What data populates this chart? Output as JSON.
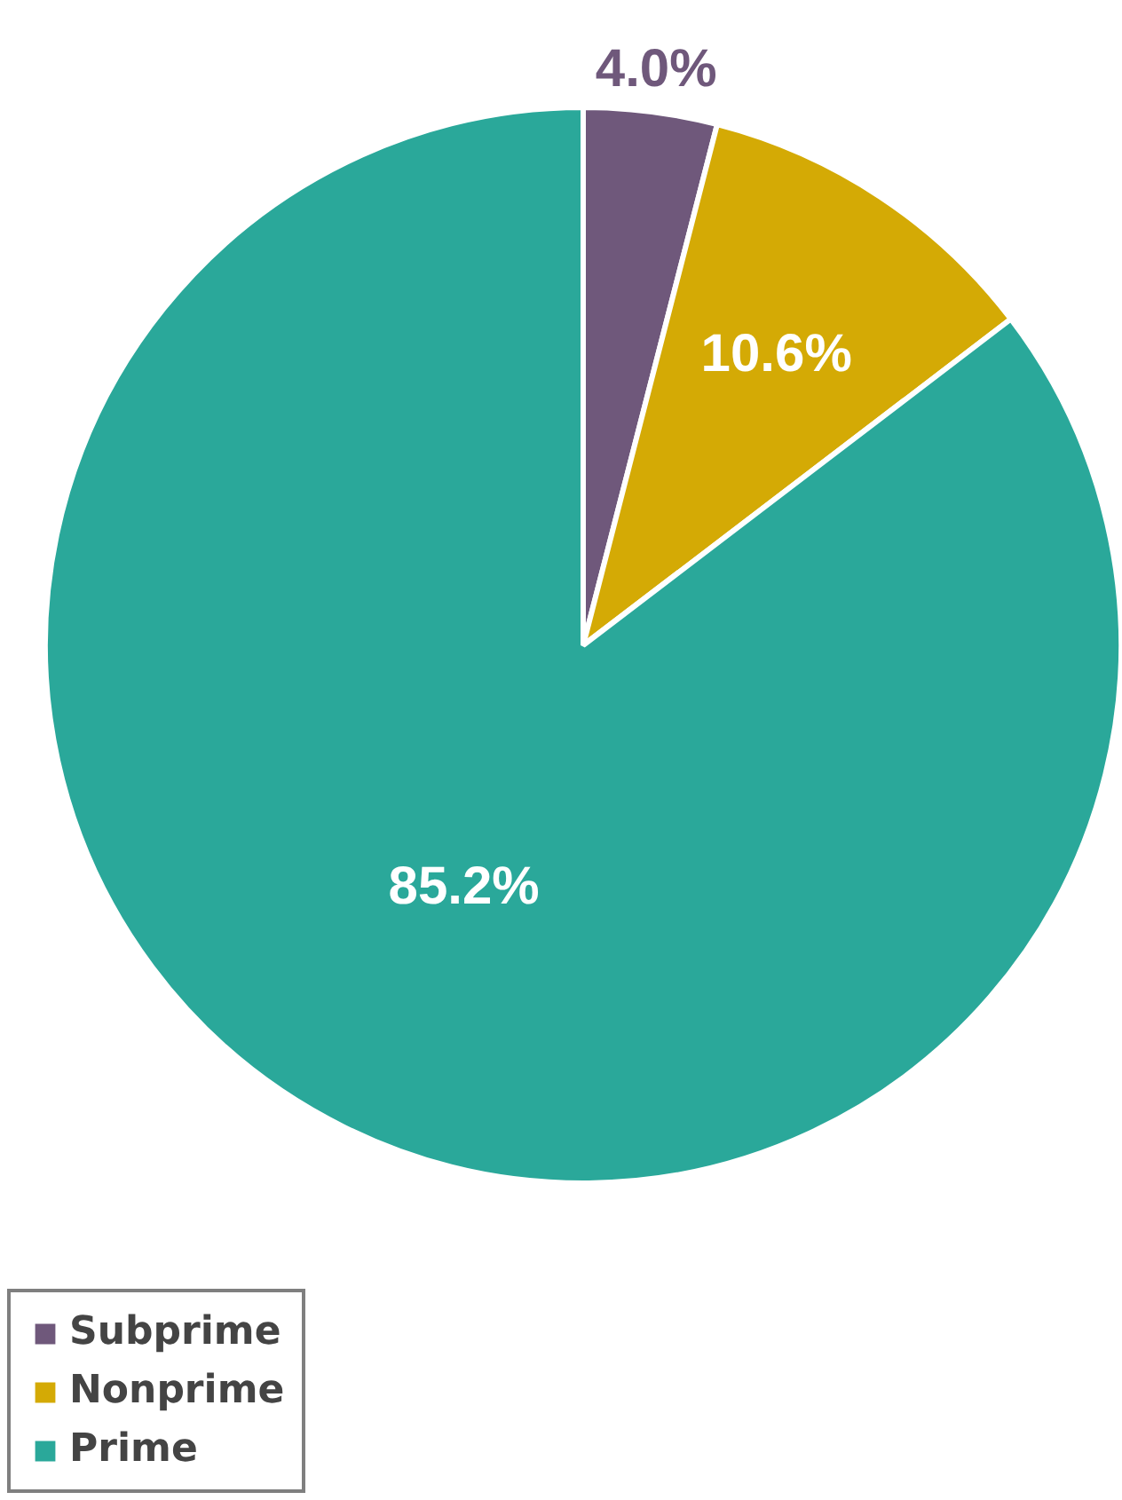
{
  "chart_data": {
    "type": "pie",
    "categories": [
      "Subprime",
      "Nonprime",
      "Prime"
    ],
    "values": [
      4.0,
      10.6,
      85.2
    ],
    "colors": [
      "#6f587b",
      "#d4aa05",
      "#2aa89a"
    ],
    "value_labels": [
      "4.0%",
      "10.6%",
      "85.2%"
    ],
    "legend": "bottom left"
  }
}
